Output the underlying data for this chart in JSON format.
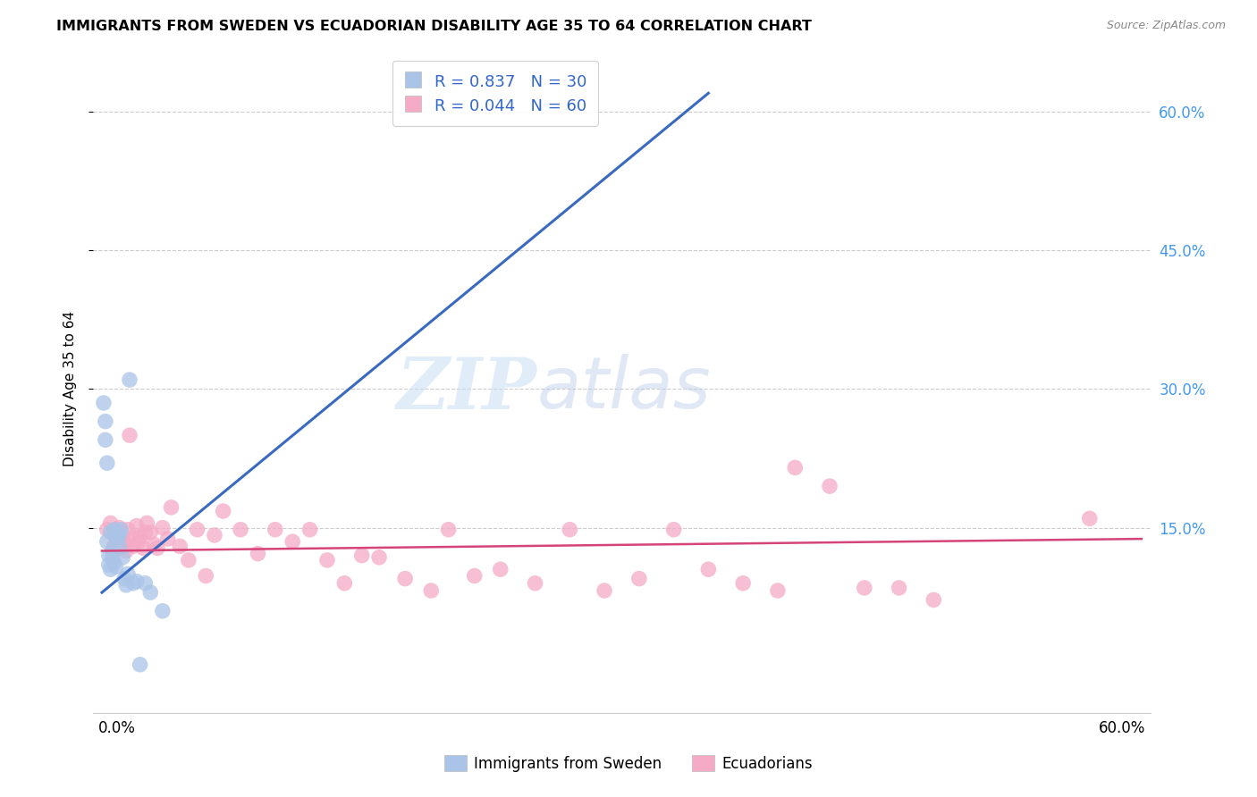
{
  "title": "IMMIGRANTS FROM SWEDEN VS ECUADORIAN DISABILITY AGE 35 TO 64 CORRELATION CHART",
  "source": "Source: ZipAtlas.com",
  "ylabel": "Disability Age 35 to 64",
  "y_tick_labels": [
    "15.0%",
    "30.0%",
    "45.0%",
    "60.0%"
  ],
  "y_tick_values": [
    0.15,
    0.3,
    0.45,
    0.6
  ],
  "xlim": [
    -0.005,
    0.605
  ],
  "ylim": [
    -0.05,
    0.65
  ],
  "watermark_zip": "ZIP",
  "watermark_atlas": "atlas",
  "legend_r1": "R = 0.837   N = 30",
  "legend_r2": "R = 0.044   N = 60",
  "legend_label1": "Immigrants from Sweden",
  "legend_label2": "Ecuadorians",
  "sweden_color": "#aac4e8",
  "ecuador_color": "#f5aac5",
  "sweden_line_color": "#3a6abf",
  "ecuador_line_color": "#d44478",
  "sweden_scatter_x": [
    0.001,
    0.002,
    0.002,
    0.003,
    0.003,
    0.004,
    0.004,
    0.005,
    0.005,
    0.006,
    0.006,
    0.007,
    0.007,
    0.008,
    0.008,
    0.009,
    0.01,
    0.01,
    0.011,
    0.012,
    0.013,
    0.014,
    0.015,
    0.016,
    0.018,
    0.02,
    0.022,
    0.025,
    0.028,
    0.035
  ],
  "sweden_scatter_y": [
    0.285,
    0.265,
    0.245,
    0.22,
    0.135,
    0.12,
    0.11,
    0.105,
    0.145,
    0.125,
    0.118,
    0.112,
    0.148,
    0.108,
    0.145,
    0.138,
    0.142,
    0.13,
    0.148,
    0.118,
    0.095,
    0.088,
    0.1,
    0.31,
    0.09,
    0.092,
    0.002,
    0.09,
    0.08,
    0.06
  ],
  "ecuador_scatter_x": [
    0.003,
    0.005,
    0.007,
    0.008,
    0.009,
    0.01,
    0.011,
    0.012,
    0.013,
    0.014,
    0.015,
    0.016,
    0.017,
    0.018,
    0.02,
    0.021,
    0.022,
    0.024,
    0.025,
    0.026,
    0.028,
    0.03,
    0.032,
    0.035,
    0.038,
    0.04,
    0.045,
    0.05,
    0.055,
    0.06,
    0.065,
    0.07,
    0.08,
    0.09,
    0.1,
    0.11,
    0.12,
    0.13,
    0.14,
    0.15,
    0.16,
    0.175,
    0.19,
    0.2,
    0.215,
    0.23,
    0.25,
    0.27,
    0.29,
    0.31,
    0.33,
    0.35,
    0.37,
    0.39,
    0.4,
    0.42,
    0.44,
    0.46,
    0.48,
    0.57
  ],
  "ecuador_scatter_y": [
    0.148,
    0.155,
    0.13,
    0.14,
    0.138,
    0.15,
    0.128,
    0.142,
    0.135,
    0.125,
    0.148,
    0.25,
    0.138,
    0.13,
    0.152,
    0.135,
    0.14,
    0.128,
    0.145,
    0.155,
    0.145,
    0.132,
    0.128,
    0.15,
    0.138,
    0.172,
    0.13,
    0.115,
    0.148,
    0.098,
    0.142,
    0.168,
    0.148,
    0.122,
    0.148,
    0.135,
    0.148,
    0.115,
    0.09,
    0.12,
    0.118,
    0.095,
    0.082,
    0.148,
    0.098,
    0.105,
    0.09,
    0.148,
    0.082,
    0.095,
    0.148,
    0.105,
    0.09,
    0.082,
    0.215,
    0.195,
    0.085,
    0.085,
    0.072,
    0.16
  ]
}
